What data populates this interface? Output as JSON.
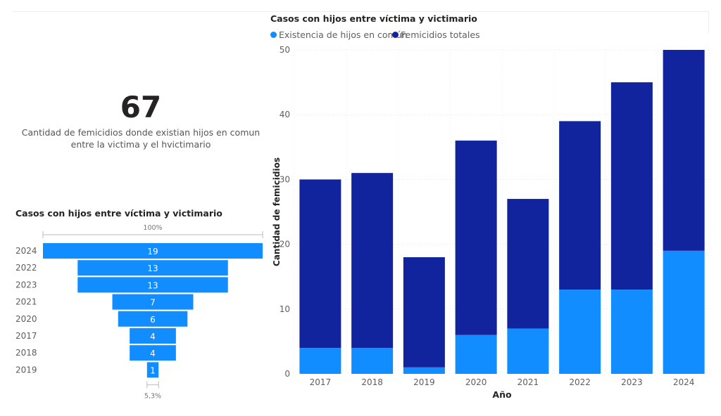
{
  "card": {
    "value": "67",
    "label": "Cantidad de femicidios donde existian hijos en comun entre la victima y el hvictimario"
  },
  "funnel": {
    "title": "Casos con hijos entre víctima y victimario",
    "top_percent": "100%",
    "bottom_percent": "5,3%",
    "categories": [
      "2024",
      "2022",
      "2023",
      "2021",
      "2020",
      "2017",
      "2018",
      "2019"
    ],
    "values": [
      19,
      13,
      13,
      7,
      6,
      4,
      4,
      1
    ],
    "color": "#118DFF"
  },
  "chart_data": {
    "type": "bar",
    "stacked": true,
    "title": "Casos con hijos entre víctima y victimario",
    "xlabel": "Año",
    "ylabel": "Cantidad de femicidios",
    "categories": [
      "2017",
      "2018",
      "2019",
      "2020",
      "2021",
      "2022",
      "2023",
      "2024"
    ],
    "series": [
      {
        "name": "Existencia de hijos en común",
        "color": "#118DFF",
        "values": [
          4,
          4,
          1,
          6,
          7,
          13,
          13,
          19
        ]
      },
      {
        "name": "Femicidios totales",
        "color": "#12239E",
        "values": [
          26,
          27,
          17,
          30,
          20,
          26,
          32,
          31
        ]
      }
    ],
    "ylim": [
      0,
      50
    ],
    "yticks": [
      0,
      10,
      20,
      30,
      40,
      50
    ],
    "grid": true,
    "legend": "top-left"
  }
}
